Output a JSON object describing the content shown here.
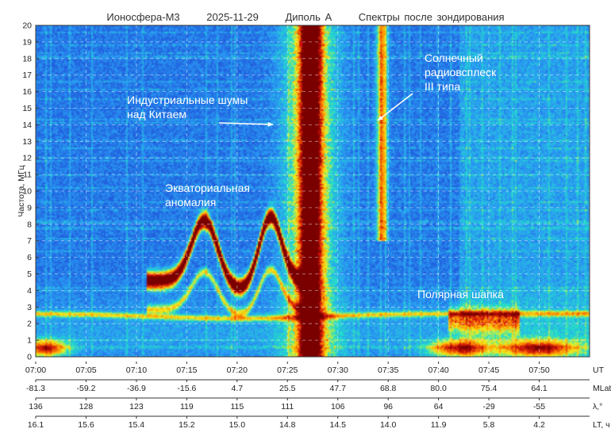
{
  "header": {
    "instrument": "Ионосфера-М3",
    "date": "2025-11-29",
    "antenna": "Диполь А",
    "description": "Спектры после зондирования"
  },
  "chart_data": {
    "type": "heatmap",
    "ylabel": "Частота, МГц",
    "ylim": [
      0,
      20
    ],
    "yticks": [
      0,
      1,
      2,
      3,
      4,
      5,
      6,
      7,
      8,
      9,
      10,
      11,
      12,
      13,
      14,
      15,
      16,
      17,
      18,
      19,
      20
    ],
    "grid": true,
    "x_rows": [
      {
        "name": "UT",
        "values": [
          "07:00",
          "07:05",
          "07:10",
          "07:15",
          "07:20",
          "07:25",
          "07:30",
          "07:35",
          "07:40",
          "07:45",
          "07:50"
        ]
      },
      {
        "name": "MLat,°",
        "values": [
          "-81.3",
          "-59.2",
          "-36.9",
          "-15.6",
          "4.7",
          "25.5",
          "47.7",
          "68.8",
          "80.0",
          "75.4",
          "64.1"
        ]
      },
      {
        "name": "λ,°",
        "values": [
          "136",
          "128",
          "123",
          "119",
          "115",
          "111",
          "106",
          "96",
          "64",
          "-29",
          "-55"
        ]
      },
      {
        "name": "LT, ч",
        "values": [
          "16.1",
          "15.6",
          "15.4",
          "15.2",
          "15.0",
          "14.8",
          "14.5",
          "14.0",
          "11.9",
          "5.8",
          "4.2"
        ]
      }
    ],
    "xlim_minutes_ut": [
      "07:00",
      "07:55"
    ],
    "colormap": [
      "#08306b",
      "#1f4fd8",
      "#2a9df4",
      "#22e0c8",
      "#f0f01e",
      "#ff8a00",
      "#d4160b",
      "#7a0000"
    ],
    "annotations": [
      {
        "text_lines": [
          "Индустриальные шумы",
          "над Китаем"
        ],
        "ut": "07:25",
        "freq": 14.2
      },
      {
        "text_lines": [
          "Солнечный",
          "радиовсплеск",
          "III типа"
        ],
        "ut": "07:33.5",
        "freq": 14.2
      },
      {
        "text_lines": [
          "Экваториальная",
          "аномалия"
        ],
        "ut": "07:17",
        "freq": 9.5
      },
      {
        "text_lines": [
          "Полярная шапка"
        ],
        "ut": "07:42",
        "freq": 3.5
      }
    ]
  }
}
